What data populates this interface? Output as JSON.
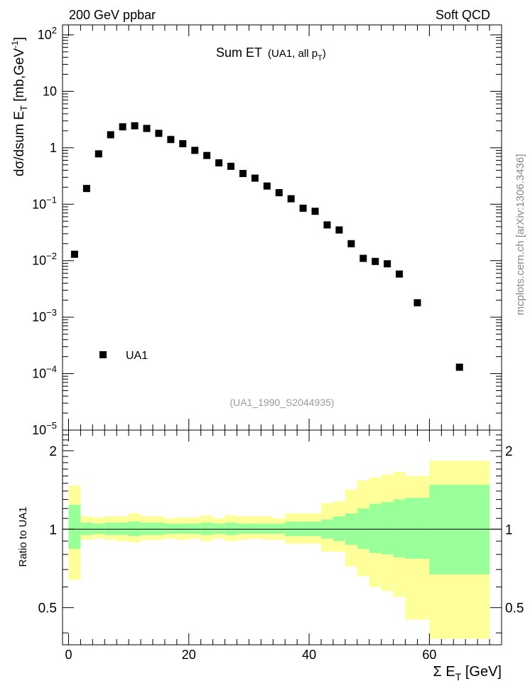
{
  "header": {
    "left": "200 GeV ppbar",
    "right": "Soft QCD",
    "side": "mcplots.cern.ch [arXiv:1306.3436]"
  },
  "main_panel": {
    "title": "Sum ET",
    "title_sub_pre": "(UA1, all p",
    "title_sub_sub": "T",
    "title_sub_post": ")",
    "ylabel_pre": "dσ/dsum E",
    "ylabel_sub": "T",
    "ylabel_mid": " [mb,GeV",
    "ylabel_sup": "-1",
    "ylabel_post": "]",
    "watermark": "(UA1_1990_S2044935)",
    "legend": "UA1",
    "y_ticks": [
      {
        "v": 100,
        "base": "10",
        "exp": "2"
      },
      {
        "v": 10,
        "base": "10",
        "exp": ""
      },
      {
        "v": 1,
        "base": "1",
        "exp": ""
      },
      {
        "v": 0.1,
        "base": "10",
        "exp": "−1"
      },
      {
        "v": 0.01,
        "base": "10",
        "exp": "−2"
      },
      {
        "v": 0.001,
        "base": "10",
        "exp": "−3"
      },
      {
        "v": 0.0001,
        "base": "10",
        "exp": "−4"
      },
      {
        "v": 1e-05,
        "base": "10",
        "exp": "−5"
      }
    ]
  },
  "ratio_panel": {
    "ylabel": "Ratio to UA1",
    "y_ticks": [
      "0.5",
      "1",
      "2"
    ],
    "colors": {
      "inner": "#99ff99",
      "outer": "#ffff99"
    }
  },
  "x_axis": {
    "label_pre": "Σ E",
    "label_sub": "T",
    "label_post": " [GeV]",
    "ticks": [
      "0",
      "20",
      "40",
      "60"
    ]
  },
  "chart_data": {
    "type": "scatter",
    "x_range": [
      -1,
      72
    ],
    "y_range": [
      1e-05,
      150
    ],
    "y_scale": "log",
    "ratio_range": [
      0.36,
      2.4
    ],
    "ratio_scale": "log",
    "series": [
      {
        "name": "UA1",
        "x": [
          1,
          3,
          5,
          7,
          9,
          11,
          13,
          15,
          17,
          19,
          21,
          23,
          25,
          27,
          29,
          31,
          33,
          35,
          37,
          39,
          41,
          43,
          45,
          47,
          49,
          51,
          53,
          55,
          58,
          65
        ],
        "y": [
          0.013,
          0.19,
          0.78,
          1.7,
          2.35,
          2.45,
          2.2,
          1.8,
          1.4,
          1.18,
          0.9,
          0.73,
          0.54,
          0.47,
          0.35,
          0.29,
          0.21,
          0.16,
          0.125,
          0.085,
          0.075,
          0.043,
          0.035,
          0.02,
          0.011,
          0.0097,
          0.0088,
          0.0058,
          0.0018,
          0.00013
        ]
      }
    ],
    "bands": {
      "edges": [
        0,
        2,
        4,
        6,
        8,
        10,
        12,
        14,
        16,
        18,
        20,
        22,
        24,
        26,
        28,
        30,
        32,
        34,
        36,
        38,
        40,
        42,
        44,
        46,
        48,
        50,
        52,
        54,
        56,
        60,
        70
      ],
      "inner_lo": [
        0.84,
        0.95,
        0.96,
        0.95,
        0.95,
        0.94,
        0.95,
        0.95,
        0.96,
        0.96,
        0.96,
        0.95,
        0.96,
        0.95,
        0.96,
        0.96,
        0.96,
        0.96,
        0.94,
        0.94,
        0.94,
        0.92,
        0.9,
        0.87,
        0.84,
        0.81,
        0.8,
        0.78,
        0.77,
        0.67
      ],
      "inner_hi": [
        1.24,
        1.06,
        1.05,
        1.06,
        1.06,
        1.07,
        1.06,
        1.06,
        1.05,
        1.05,
        1.05,
        1.06,
        1.05,
        1.06,
        1.05,
        1.05,
        1.05,
        1.05,
        1.07,
        1.07,
        1.07,
        1.09,
        1.12,
        1.15,
        1.2,
        1.25,
        1.27,
        1.3,
        1.32,
        1.48
      ],
      "outer_lo": [
        0.64,
        0.91,
        0.92,
        0.91,
        0.9,
        0.89,
        0.91,
        0.91,
        0.92,
        0.91,
        0.92,
        0.9,
        0.92,
        0.9,
        0.91,
        0.92,
        0.91,
        0.91,
        0.88,
        0.88,
        0.88,
        0.82,
        0.82,
        0.72,
        0.66,
        0.6,
        0.58,
        0.55,
        0.45,
        0.38
      ],
      "outer_hi": [
        1.47,
        1.12,
        1.11,
        1.12,
        1.12,
        1.15,
        1.12,
        1.12,
        1.1,
        1.11,
        1.11,
        1.13,
        1.1,
        1.13,
        1.12,
        1.12,
        1.12,
        1.1,
        1.15,
        1.15,
        1.15,
        1.26,
        1.28,
        1.42,
        1.54,
        1.58,
        1.62,
        1.66,
        1.6,
        1.83
      ]
    }
  }
}
